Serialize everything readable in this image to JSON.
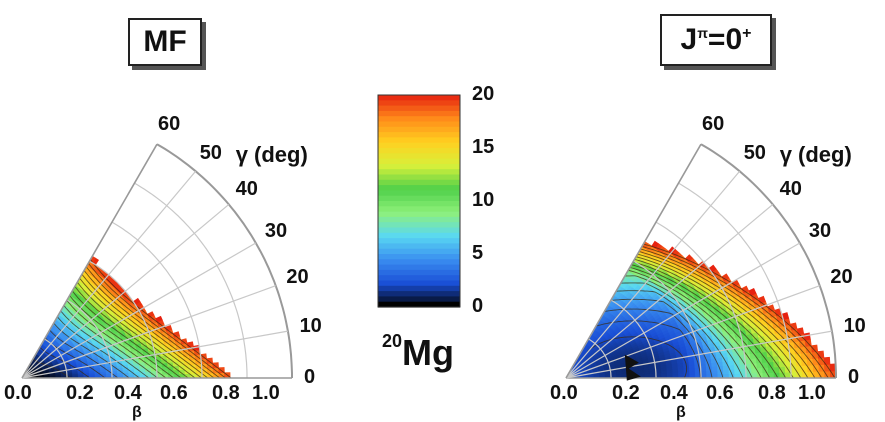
{
  "nucleus": {
    "mass_number": "20",
    "symbol": "Mg"
  },
  "colorbar": {
    "ticks": [
      "20",
      "15",
      "10",
      "5",
      "0"
    ],
    "vmin": 0,
    "vmax": 20,
    "colors": [
      "#000000",
      "#1a4fd6",
      "#3a8ef0",
      "#59d8f2",
      "#8ef07a",
      "#4fd04a",
      "#d8f03a",
      "#ffd020",
      "#ff8a1a",
      "#e62010"
    ]
  },
  "chart_data": [
    {
      "type": "heatmap",
      "title": "MF",
      "title_parts": {
        "base": "MF",
        "sup": ""
      },
      "angular_label": "γ (deg)",
      "angular_ticks": [
        "0",
        "10",
        "20",
        "30",
        "40",
        "50",
        "60"
      ],
      "radial_ticks": [
        "0.0",
        "0.2",
        "0.4",
        "0.6",
        "0.8",
        "1.0"
      ],
      "xlabel": "β",
      "gamma_range": [
        0,
        60
      ],
      "beta_range": [
        0,
        1.2
      ],
      "color_range": [
        0,
        20
      ],
      "surface": "mean-field potential energy surface, minimum near β≈0 (spherical), energy increasing with β, cut at 20 MeV"
    },
    {
      "type": "heatmap",
      "title": "Jπ=0+",
      "title_parts": {
        "base": "J",
        "sup1": "π",
        "mid": "=0",
        "sup2": "+"
      },
      "angular_label": "γ (deg)",
      "angular_ticks": [
        "0",
        "10",
        "20",
        "30",
        "40",
        "50",
        "60"
      ],
      "radial_ticks": [
        "0.0",
        "0.2",
        "0.4",
        "0.6",
        "0.8",
        "1.0"
      ],
      "xlabel": "β",
      "gamma_range": [
        0,
        60
      ],
      "beta_range": [
        0,
        1.2
      ],
      "color_range": [
        0,
        20
      ],
      "minimum": {
        "beta": 0.3,
        "gamma": 8
      },
      "surface": "projected J=0+ energy surface, deformed minimum near β≈0.3, broad low-energy valley"
    }
  ]
}
